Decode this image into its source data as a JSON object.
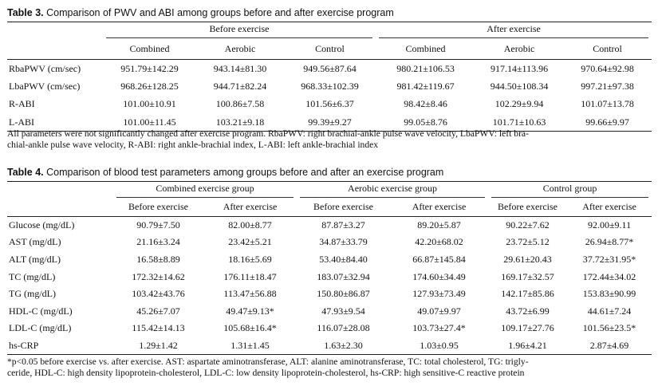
{
  "table3": {
    "caption_label": "Table 3.",
    "caption_text": "Comparison of PWV and ABI among groups before and after exercise program",
    "group_before": "Before exercise",
    "group_after": "After exercise",
    "columns": [
      "Combined",
      "Aerobic",
      "Control",
      "Combined",
      "Aerobic",
      "Control"
    ],
    "rows": [
      {
        "label": "RbaPWV (cm/sec)",
        "cells": [
          "951.79±142.29",
          "943.14±81.30",
          "949.56±87.64",
          "980.21±106.53",
          "917.14±113.96",
          "970.64±92.98"
        ]
      },
      {
        "label": "LbaPWV (cm/sec)",
        "cells": [
          "968.26±128.25",
          "944.71±82.24",
          "968.33±102.39",
          "981.42±119.67",
          "944.50±108.34",
          "997.21±97.38"
        ]
      },
      {
        "label": "R-ABI",
        "cells": [
          "101.00±10.91",
          "100.86±7.58",
          "101.56±6.37",
          "98.42±8.46",
          "102.29±9.94",
          "101.07±13.78"
        ]
      },
      {
        "label": "L-ABI",
        "cells": [
          "101.00±11.45",
          "103.21±9.18",
          "99.39±9.27",
          "99.05±8.76",
          "101.71±10.63",
          "99.66±9.97"
        ]
      }
    ],
    "footnote_line1": "All parameters were not significantly changed after exercise program. RbaPWV: right brachial-ankle pulse wave velocity, LbaPWV: left bra-",
    "footnote_line2": "chial-ankle pulse wave velocity, R-ABI: right ankle-brachial index, L-ABI: left ankle-brachial index"
  },
  "table4": {
    "caption_label": "Table 4.",
    "caption_text": "Comparison of blood test parameters among groups before and after an exercise program",
    "groups": [
      "Combined exercise group",
      "Aerobic exercise group",
      "Control group"
    ],
    "subcolumns": [
      "Before exercise",
      "After exercise",
      "Before exercise",
      "After exercise",
      "Before exercise",
      "After exercise"
    ],
    "rows": [
      {
        "label": "Glucose (mg/dL)",
        "cells": [
          "90.79±7.50",
          "82.00±8.77",
          "87.87±3.27",
          "89.20±5.87",
          "90.22±7.62",
          "92.00±9.11"
        ]
      },
      {
        "label": "AST (mg/dL)",
        "cells": [
          "21.16±3.24",
          "23.42±5.21",
          "34.87±33.79",
          "42.20±68.02",
          "23.72±5.12",
          "26.94±8.77*"
        ]
      },
      {
        "label": "ALT (mg/dL)",
        "cells": [
          "16.58±8.89",
          "18.16±5.69",
          "53.40±84.40",
          "66.87±145.84",
          "29.61±20.43",
          "37.72±31.95*"
        ]
      },
      {
        "label": "TC (mg/dL)",
        "cells": [
          "172.32±14.62",
          "176.11±18.47",
          "183.07±32.94",
          "174.60±34.49",
          "169.17±32.57",
          "172.44±34.02"
        ]
      },
      {
        "label": "TG (mg/dL)",
        "cells": [
          "103.42±43.76",
          "113.47±56.88",
          "150.80±86.87",
          "127.93±73.49",
          "142.17±85.86",
          "153.83±90.99"
        ]
      },
      {
        "label": "HDL-C (mg/dL)",
        "cells": [
          "45.26±7.07",
          "49.47±9.13*",
          "47.93±9.54",
          "49.07±9.97",
          "43.72±6.99",
          "44.61±7.24"
        ]
      },
      {
        "label": "LDL-C (mg/dL)",
        "cells": [
          "115.42±14.13",
          "105.68±16.4*",
          "116.07±28.08",
          "103.73±27.4*",
          "109.17±27.76",
          "101.56±23.5*"
        ]
      },
      {
        "label": "hs-CRP",
        "cells": [
          "1.29±1.42",
          "1.31±1.45",
          "1.63±2.30",
          "1.03±0.95",
          "1.96±4.21",
          "2.87±4.69"
        ]
      }
    ],
    "footnote_line1": "*p<0.05 before exercise vs. after exercise. AST: aspartate aminotransferase, ALT: alanine aminotransferase, TC: total cholesterol, TG: trigly-",
    "footnote_line2": "ceride, HDL-C: high density lipoprotein-cholesterol, LDL-C: low density lipoprotein-cholesterol, hs-CRP: high sensitive-C reactive protein"
  }
}
